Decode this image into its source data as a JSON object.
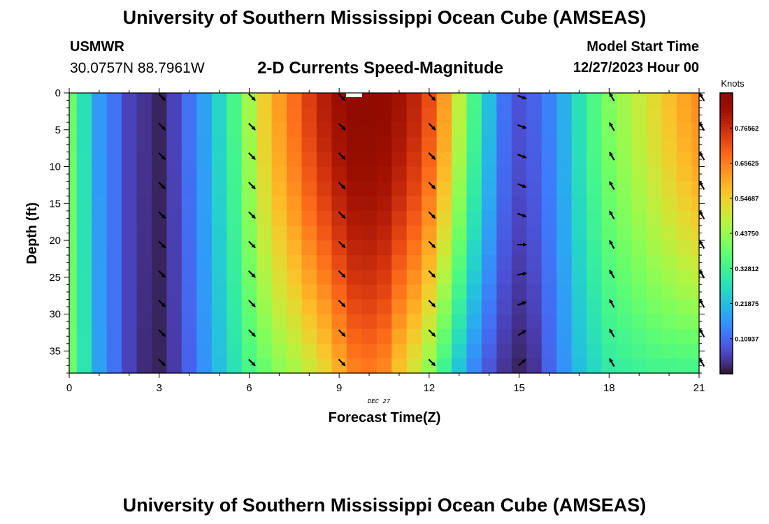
{
  "header": {
    "title": "University of Southern Mississippi Ocean Cube (AMSEAS)",
    "station": "USMWR",
    "coordinates": "30.0757N  88.7961W",
    "plot_title": "2-D Currents Speed-Magnitude",
    "model_start_label": "Model Start Time",
    "model_start_value": "12/27/2023 Hour 00"
  },
  "footer": {
    "title": "University of Southern Mississippi Ocean Cube (AMSEAS)"
  },
  "chart_data": {
    "type": "heatmap",
    "title": "2-D Currents Speed-Magnitude",
    "xlabel": "Forecast Time(Z)",
    "ylabel": "Depth (ft)",
    "date_label": "DEC 27",
    "xlim": [
      0,
      21
    ],
    "ylim": [
      0,
      38
    ],
    "y_inverted": true,
    "x_ticks": [
      0,
      3,
      6,
      9,
      12,
      15,
      18,
      21
    ],
    "x_tick_labels": [
      "0",
      "3",
      "6",
      "9",
      "12",
      "15",
      "18",
      "21"
    ],
    "y_ticks": [
      0,
      5,
      10,
      15,
      20,
      25,
      30,
      35
    ],
    "y_tick_labels": [
      "0",
      "5",
      "10",
      "15",
      "20",
      "25",
      "30",
      "35"
    ],
    "colorbar": {
      "units": "Knots",
      "range": [
        0,
        0.875
      ],
      "tick_values": [
        0.109375,
        0.21875,
        0.328125,
        0.4375,
        0.546875,
        0.65625,
        0.765625
      ],
      "tick_labels": [
        "0.10937",
        "0.21875",
        "0.32812",
        "0.43750",
        "0.54687",
        "0.65625",
        "0.76562"
      ]
    },
    "time_hours": [
      0,
      0.5,
      1,
      1.5,
      2,
      2.5,
      3,
      3.5,
      4,
      4.5,
      5,
      5.5,
      6,
      6.5,
      7,
      7.5,
      8,
      8.5,
      9,
      9.5,
      10,
      10.5,
      11,
      11.5,
      12,
      12.5,
      13,
      13.5,
      14,
      14.5,
      15,
      15.5,
      16,
      16.5,
      17,
      17.5,
      18,
      18.5,
      19,
      19.5,
      20,
      20.5,
      21
    ],
    "surface_speed_knots": [
      0.39,
      0.28,
      0.17,
      0.12,
      0.06,
      0.04,
      0.02,
      0.06,
      0.12,
      0.18,
      0.26,
      0.34,
      0.45,
      0.55,
      0.62,
      0.68,
      0.74,
      0.79,
      0.83,
      0.86,
      0.86,
      0.85,
      0.82,
      0.78,
      0.72,
      0.62,
      0.48,
      0.34,
      0.22,
      0.12,
      0.08,
      0.1,
      0.14,
      0.2,
      0.28,
      0.35,
      0.41,
      0.45,
      0.49,
      0.53,
      0.57,
      0.61,
      0.64
    ],
    "bottom_speed_knots": [
      0.39,
      0.29,
      0.18,
      0.12,
      0.06,
      0.03,
      0.02,
      0.05,
      0.1,
      0.16,
      0.22,
      0.28,
      0.34,
      0.38,
      0.42,
      0.45,
      0.49,
      0.53,
      0.59,
      0.65,
      0.66,
      0.64,
      0.56,
      0.5,
      0.42,
      0.32,
      0.22,
      0.14,
      0.08,
      0.04,
      0.02,
      0.04,
      0.1,
      0.16,
      0.22,
      0.26,
      0.3,
      0.31,
      0.32,
      0.33,
      0.33,
      0.33,
      0.33
    ],
    "vector_times": [
      3,
      6,
      9,
      12,
      15,
      18,
      21
    ],
    "vector_depths": [
      0,
      4,
      8,
      12,
      16,
      20,
      24,
      28,
      32,
      36
    ],
    "vector_directions_deg": [
      135,
      135,
      135,
      135,
      110,
      330,
      330
    ],
    "vector_directions_adjusted": [
      {
        "time": 15,
        "depth": 20,
        "direction": 90
      },
      {
        "time": 15,
        "depth": 24,
        "direction": 80
      },
      {
        "time": 15,
        "depth": 28,
        "direction": 70
      },
      {
        "time": 15,
        "depth": 32,
        "direction": 60
      },
      {
        "time": 15,
        "depth": 36,
        "direction": 50
      }
    ]
  }
}
